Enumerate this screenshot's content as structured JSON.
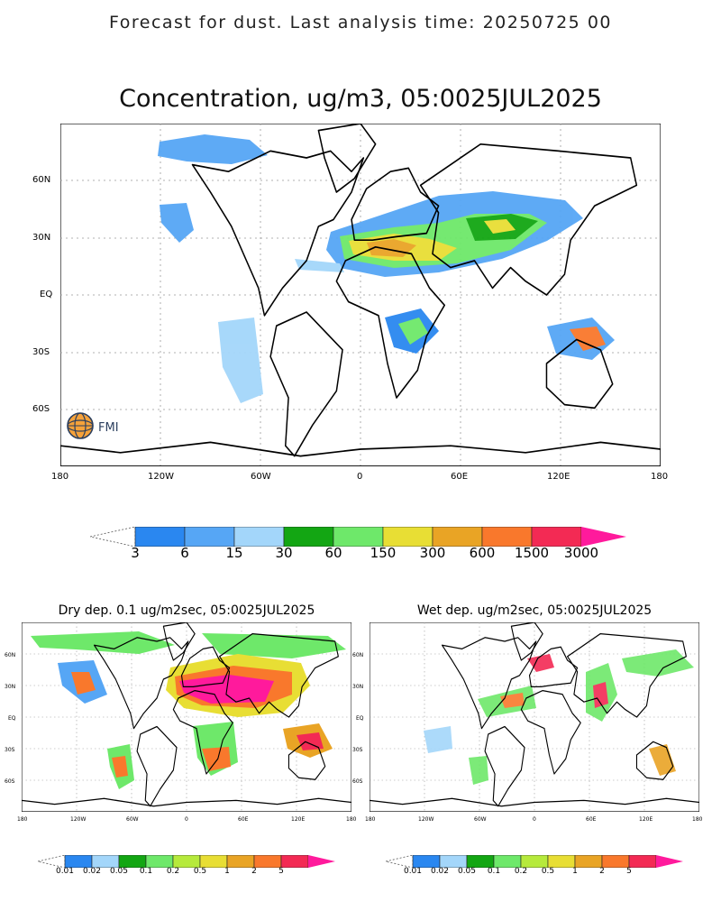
{
  "header": "Forecast for dust. Last analysis time: 20250725 00",
  "main": {
    "title": "Concentration, ug/m3, 05:0025JUL2025",
    "logo_text": "FMI",
    "lat_labels": [
      "60N",
      "30N",
      "EQ",
      "30S",
      "60S"
    ],
    "lon_labels": [
      "180",
      "120W",
      "60W",
      "0",
      "60E",
      "120E",
      "180"
    ],
    "colorbar": {
      "labels": [
        "3",
        "6",
        "15",
        "30",
        "60",
        "150",
        "300",
        "600",
        "1500",
        "3000"
      ],
      "colors": [
        "#2a87f0",
        "#56a6f5",
        "#a3d6fa",
        "#13a613",
        "#6ee86a",
        "#e8de34",
        "#e9a425",
        "#f9782c",
        "#f32a54",
        "#ff1a9c"
      ]
    }
  },
  "dry": {
    "title": "Dry dep. 0.1 ug/m2sec, 05:0025JUL2025",
    "lat_labels": [
      "60N",
      "30N",
      "EQ",
      "30S",
      "60S"
    ],
    "lon_labels": [
      "180",
      "120W",
      "60W",
      "0",
      "60E",
      "120E",
      "180"
    ],
    "colorbar": {
      "labels": [
        "0.01",
        "0.02",
        "0.05",
        "0.1",
        "0.2",
        "0.5",
        "1",
        "2",
        "5"
      ],
      "colors": [
        "#2a87f0",
        "#a3d6fa",
        "#13a613",
        "#6ee86a",
        "#b6ea3c",
        "#e8de34",
        "#e9a425",
        "#f9782c",
        "#f32a54",
        "#ff1a9c"
      ]
    }
  },
  "wet": {
    "title": "Wet dep. ug/m2sec, 05:0025JUL2025",
    "lat_labels": [
      "60N",
      "30N",
      "EQ",
      "30S",
      "60S"
    ],
    "lon_labels": [
      "180",
      "120W",
      "60W",
      "0",
      "60E",
      "120E",
      "180"
    ],
    "colorbar": {
      "labels": [
        "0.01",
        "0.02",
        "0.05",
        "0.1",
        "0.2",
        "0.5",
        "1",
        "2",
        "5"
      ],
      "colors": [
        "#2a87f0",
        "#a3d6fa",
        "#13a613",
        "#6ee86a",
        "#b6ea3c",
        "#e8de34",
        "#e9a425",
        "#f9782c",
        "#f32a54",
        "#ff1a9c"
      ]
    }
  }
}
